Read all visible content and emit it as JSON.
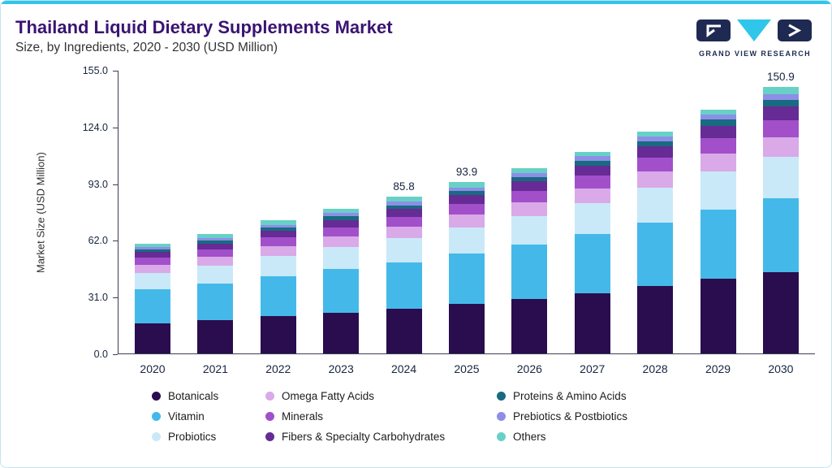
{
  "header": {
    "title": "Thailand Liquid Dietary Supplements Market",
    "subtitle": "Size, by Ingredients, 2020 - 2030 (USD Million)",
    "logo_text": "GRAND VIEW RESEARCH"
  },
  "theme": {
    "accent_cyan": "#2fc6e9",
    "brand_navy": "#1e2a52",
    "title_purple": "#3a1473"
  },
  "chart_data": {
    "type": "bar",
    "stacked": true,
    "title": "Thailand Liquid Dietary Supplements Market Size, by Ingredients, 2020 - 2030 (USD Million)",
    "xlabel": "",
    "ylabel": "Market Size (USD Million)",
    "ylim": [
      0,
      155
    ],
    "yticks": [
      "155.0",
      "124.0",
      "93.0",
      "62.0",
      "31.0",
      "0.0"
    ],
    "grid": false,
    "legend_position": "bottom",
    "categories": [
      "2020",
      "2021",
      "2022",
      "2023",
      "2024",
      "2025",
      "2026",
      "2027",
      "2028",
      "2029",
      "2030"
    ],
    "series": [
      {
        "name": "Botanicals",
        "color": "#2a0d4e",
        "values": [
          16.5,
          18.1,
          20.3,
          22.3,
          24.4,
          27.0,
          30.0,
          33.1,
          36.8,
          40.9,
          46.0
        ]
      },
      {
        "name": "Vitamin",
        "color": "#44b9e9",
        "values": [
          18.7,
          20.1,
          22.2,
          24.0,
          25.7,
          27.9,
          29.8,
          32.2,
          35.1,
          38.1,
          42.0
        ]
      },
      {
        "name": "Probiotics",
        "color": "#c9e9f8",
        "values": [
          9.0,
          9.8,
          11.0,
          12.0,
          13.0,
          14.3,
          15.5,
          17.0,
          18.8,
          20.8,
          23.5
        ]
      },
      {
        "name": "Omega Fatty Acids",
        "color": "#d9a9e8",
        "values": [
          4.4,
          4.8,
          5.3,
          5.8,
          6.3,
          6.9,
          7.4,
          8.1,
          8.9,
          9.8,
          11.0
        ]
      },
      {
        "name": "Minerals",
        "color": "#a24fca",
        "values": [
          3.9,
          4.2,
          4.7,
          5.1,
          5.5,
          6.0,
          6.5,
          7.1,
          7.8,
          8.6,
          9.7
        ]
      },
      {
        "name": "Fibers & Specialty Carbohydrates",
        "color": "#662b94",
        "values": [
          3.0,
          3.3,
          3.7,
          4.0,
          4.3,
          4.7,
          5.1,
          5.6,
          6.1,
          6.7,
          7.6
        ]
      },
      {
        "name": "Proteins & Amino Acids",
        "color": "#186b80",
        "values": [
          1.5,
          1.6,
          1.8,
          2.0,
          2.1,
          2.3,
          2.5,
          2.7,
          3.0,
          3.3,
          3.7
        ]
      },
      {
        "name": "Prebiotics & Postbiotics",
        "color": "#8e8ee8",
        "values": [
          1.3,
          1.4,
          1.6,
          1.7,
          1.9,
          2.0,
          2.2,
          2.4,
          2.6,
          2.9,
          3.3
        ]
      },
      {
        "name": "Others",
        "color": "#68d1c6",
        "values": [
          1.9,
          2.1,
          2.3,
          2.6,
          2.6,
          2.8,
          2.5,
          2.4,
          2.6,
          2.7,
          4.1
        ]
      }
    ],
    "totals": [
      60.2,
      65.4,
      72.9,
      79.5,
      85.8,
      93.9,
      101.5,
      110.6,
      121.7,
      133.8,
      150.9
    ],
    "annotations": [
      {
        "category": "2024",
        "label": "85.8"
      },
      {
        "category": "2025",
        "label": "93.9"
      },
      {
        "category": "2030",
        "label": "150.9"
      }
    ],
    "legend_order": [
      0,
      3,
      6,
      1,
      4,
      7,
      2,
      5,
      8
    ]
  }
}
